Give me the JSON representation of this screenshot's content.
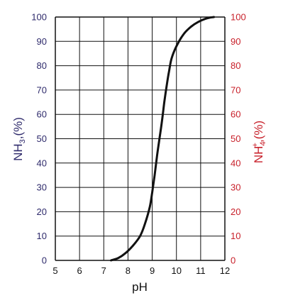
{
  "chart_data": {
    "type": "line",
    "xlabel": "pH",
    "ylabel_left": {
      "main": "NH",
      "sub": "3",
      "suffix": ",(%)"
    },
    "ylabel_right": {
      "main": "NH",
      "sub": "4",
      "sup": "+",
      "suffix": ",(%)"
    },
    "xlim": [
      5,
      12
    ],
    "ylim": [
      0,
      100
    ],
    "x_ticks": [
      "5",
      "6",
      "7",
      "8",
      "9",
      "10",
      "11",
      "12"
    ],
    "y_ticks_left": [
      "0",
      "10",
      "20",
      "30",
      "40",
      "50",
      "60",
      "70",
      "80",
      "90",
      "100"
    ],
    "y_ticks_right": [
      "100",
      "90",
      "80",
      "70",
      "60",
      "50",
      "40",
      "30",
      "20",
      "10",
      "0"
    ],
    "right_axis_inverted": true,
    "grid": true,
    "series": [
      {
        "x": [
          7.3,
          7.6,
          7.9,
          8.2,
          8.5,
          8.7,
          8.9,
          9.0,
          9.1,
          9.2,
          9.3,
          9.4,
          9.5,
          9.6,
          9.7,
          9.8,
          10.0,
          10.3,
          10.6,
          10.9,
          11.2,
          11.4,
          11.55
        ],
        "y": [
          0,
          1,
          3,
          6,
          10,
          15,
          22,
          28,
          35,
          43,
          50,
          57,
          65,
          72,
          78,
          83,
          88,
          93,
          96,
          98,
          99.3,
          99.8,
          100
        ]
      }
    ],
    "colors": {
      "curve": "#111111",
      "grid": "#111111",
      "left_axis": "#2e2a6b",
      "right_axis": "#c8202a"
    }
  }
}
